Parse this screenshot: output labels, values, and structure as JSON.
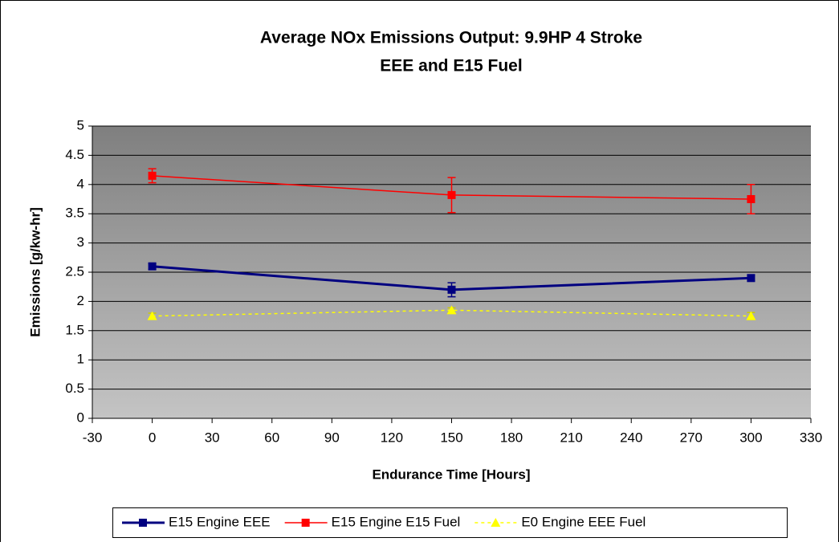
{
  "chart_data": {
    "type": "line",
    "title": [
      "Average NOx Emissions Output: 9.9HP 4 Stroke",
      "EEE and E15 Fuel"
    ],
    "x_label": "Endurance Time [Hours]",
    "y_label": "Emissions [g/kw-hr]",
    "x": [
      0,
      150,
      300
    ],
    "series": [
      {
        "name": "E15 Engine EEE",
        "color": "#000080",
        "marker": "square",
        "dash": false,
        "values": [
          2.6,
          2.2,
          2.4
        ],
        "errors": [
          0.05,
          0.12,
          0.05
        ]
      },
      {
        "name": "E15 Engine E15 Fuel",
        "color": "#ff0000",
        "marker": "square",
        "dash": false,
        "values": [
          4.15,
          3.82,
          3.75
        ],
        "errors": [
          0.12,
          0.3,
          0.25
        ]
      },
      {
        "name": "E0 Engine EEE Fuel",
        "color": "#ffff00",
        "marker": "triangle",
        "dash": true,
        "values": [
          1.75,
          1.85,
          1.75
        ],
        "errors": [
          0.05,
          0.04,
          0.06
        ]
      }
    ],
    "xlim": [
      -30,
      330
    ],
    "xticks": [
      -30,
      0,
      30,
      60,
      90,
      120,
      150,
      180,
      210,
      240,
      270,
      300,
      330
    ],
    "ylim": [
      0,
      5
    ],
    "yticks": [
      0,
      0.5,
      1,
      1.5,
      2,
      2.5,
      3,
      3.5,
      4,
      4.5,
      5
    ],
    "grid": true,
    "legend": "bottom"
  }
}
